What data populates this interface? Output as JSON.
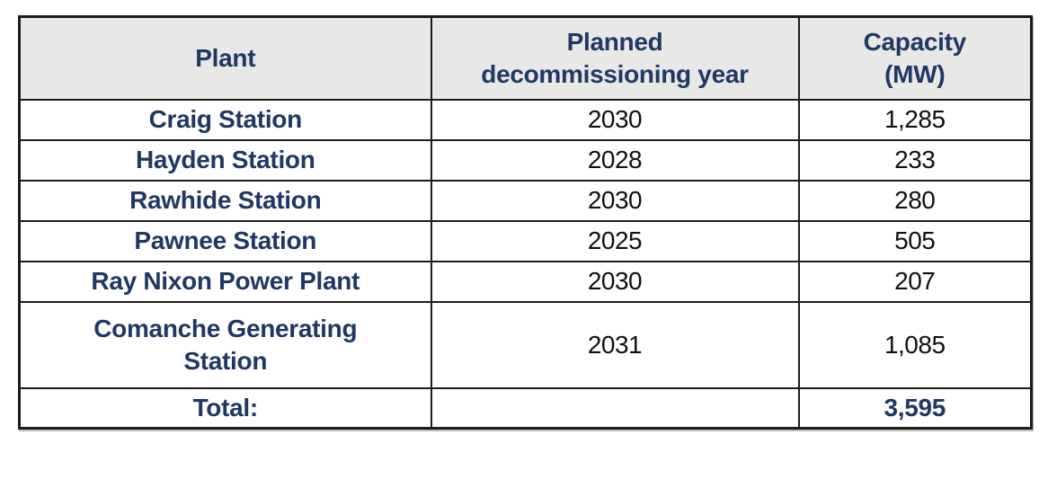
{
  "table": {
    "headers": {
      "plant": "Plant",
      "year": "Planned decommissioning year",
      "capacity": "Capacity (MW)"
    },
    "rows": [
      {
        "plant": "Craig Station",
        "year": "2030",
        "capacity": "1,285"
      },
      {
        "plant": "Hayden Station",
        "year": "2028",
        "capacity": "233"
      },
      {
        "plant": "Rawhide Station",
        "year": "2030",
        "capacity": "280"
      },
      {
        "plant": "Pawnee Station",
        "year": "2025",
        "capacity": "505"
      },
      {
        "plant": "Ray Nixon Power Plant",
        "year": "2030",
        "capacity": "207"
      },
      {
        "plant": "Comanche Generating Station",
        "year": "2031",
        "capacity": "1,085"
      }
    ],
    "total": {
      "label": "Total:",
      "capacity": "3,595"
    },
    "colors": {
      "header_bg": "#e8e8e6",
      "navy_text": "#1f3864",
      "number_text": "#111111",
      "border": "#1c1c1c"
    }
  }
}
